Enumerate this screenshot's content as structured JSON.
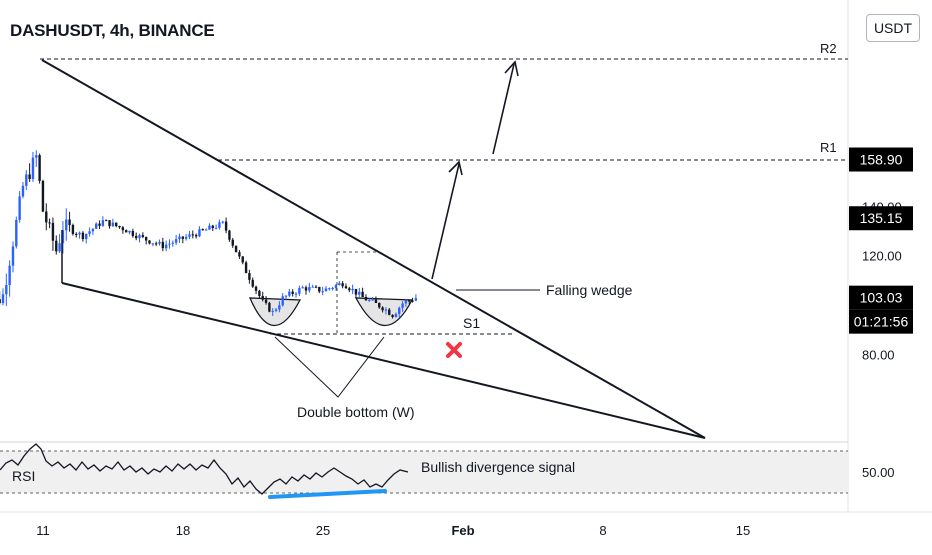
{
  "header": {
    "title": "DASHUSDT, 4h, BINANCE",
    "currency_button": "USDT"
  },
  "colors": {
    "up": "#2962ff",
    "down": "#131722",
    "divergence": "#2196f3",
    "cross": "#f23645",
    "label_bg": "#000000",
    "label_text": "#ffffff"
  },
  "chart_data": {
    "type": "candlestick",
    "title": "DASHUSDT, 4h, BINANCE",
    "ylim": [
      60,
      170
    ],
    "y_ticks": [
      {
        "value": 140,
        "label": "140.00"
      },
      {
        "value": 120,
        "label": "120.00"
      },
      {
        "value": 80,
        "label": "80.00"
      }
    ],
    "x_ticks": [
      {
        "date": "2022-01-11",
        "label": "11",
        "bold": false
      },
      {
        "date": "2022-01-18",
        "label": "18",
        "bold": false
      },
      {
        "date": "2022-01-25",
        "label": "25",
        "bold": false
      },
      {
        "date": "2022-02-01",
        "label": "Feb",
        "bold": true
      },
      {
        "date": "2022-02-08",
        "label": "8",
        "bold": false
      },
      {
        "date": "2022-02-15",
        "label": "15",
        "bold": false
      }
    ],
    "price_labels": [
      {
        "id": "r2",
        "value": 158.9,
        "label": "158.90",
        "tag": "R2"
      },
      {
        "id": "r1",
        "value": 135.15,
        "label": "135.15",
        "tag": "R1"
      },
      {
        "id": "last",
        "value": 103.03,
        "label": "103.03",
        "countdown": "01:21:56"
      }
    ],
    "close_series": [
      {
        "date": "2022-01-08",
        "close": 96
      },
      {
        "date": "2022-01-09",
        "close": 104
      },
      {
        "date": "2022-01-10",
        "close": 148
      },
      {
        "date": "2022-01-10T16:00",
        "close": 160
      },
      {
        "date": "2022-01-11",
        "close": 138
      },
      {
        "date": "2022-01-11T16:00",
        "close": 122
      },
      {
        "date": "2022-01-12",
        "close": 132
      },
      {
        "date": "2022-01-13",
        "close": 128
      },
      {
        "date": "2022-01-14",
        "close": 134
      },
      {
        "date": "2022-01-15",
        "close": 131
      },
      {
        "date": "2022-01-16",
        "close": 127
      },
      {
        "date": "2022-01-17",
        "close": 124
      },
      {
        "date": "2022-01-18",
        "close": 127
      },
      {
        "date": "2022-01-19",
        "close": 130
      },
      {
        "date": "2022-01-20",
        "close": 133
      },
      {
        "date": "2022-01-21",
        "close": 116
      },
      {
        "date": "2022-01-22",
        "close": 101
      },
      {
        "date": "2022-01-22T12:00",
        "close": 97
      },
      {
        "date": "2022-01-23",
        "close": 103
      },
      {
        "date": "2022-01-24",
        "close": 107
      },
      {
        "date": "2022-01-25",
        "close": 106
      },
      {
        "date": "2022-01-26",
        "close": 109
      },
      {
        "date": "2022-01-27",
        "close": 103
      },
      {
        "date": "2022-01-28",
        "close": 99
      },
      {
        "date": "2022-01-28T12:00",
        "close": 96
      },
      {
        "date": "2022-01-29",
        "close": 101
      },
      {
        "date": "2022-01-29T16:00",
        "close": 103
      }
    ],
    "annotations": {
      "wedge_label": "Falling wedge",
      "double_bottom_label": "Double bottom (W)",
      "s1_label": "S1",
      "s1_value": 98.5,
      "rsi_label": "RSI",
      "rsi_note": "Bullish divergence signal",
      "rsi_tick": "50.00"
    }
  }
}
